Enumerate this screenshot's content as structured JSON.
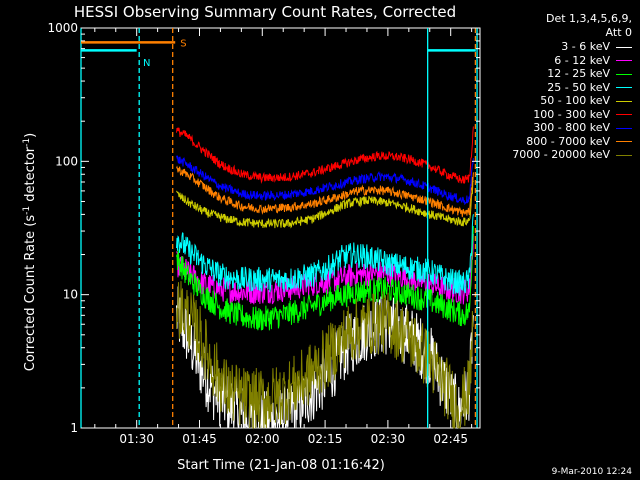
{
  "chart_data": {
    "type": "line",
    "title": "HESSI Observing Summary Count Rates, Corrected",
    "xlabel": "Start Time (21-Jan-08 01:16:42)",
    "ylabel_parts": [
      "Corrected Count Rate (s",
      "-1",
      " detector",
      "-1",
      ")"
    ],
    "yscale": "log",
    "ylim": [
      1,
      1000
    ],
    "xlim_min": [
      76.7,
      172
    ],
    "x_ticks": [
      {
        "m": 90,
        "label": "01:30"
      },
      {
        "m": 105,
        "label": "01:45"
      },
      {
        "m": 120,
        "label": "02:00"
      },
      {
        "m": 135,
        "label": "02:15"
      },
      {
        "m": 150,
        "label": "02:30"
      },
      {
        "m": 165,
        "label": "02:45"
      }
    ],
    "y_ticks": [
      {
        "v": 1,
        "label": "1"
      },
      {
        "v": 10,
        "label": "10"
      },
      {
        "v": 100,
        "label": "100"
      },
      {
        "v": 1000,
        "label": "1000"
      }
    ],
    "legend_title": [
      "Det 1,3,4,5,6,9,",
      "Att 0"
    ],
    "series": [
      {
        "name": "3 - 6 keV",
        "color": "#ffffff",
        "points": [
          [
            99.5,
            7
          ],
          [
            102,
            5
          ],
          [
            105,
            3
          ],
          [
            108,
            2
          ],
          [
            112,
            1.5
          ],
          [
            116,
            1.2
          ],
          [
            120,
            1.1
          ],
          [
            125,
            1.2
          ],
          [
            130,
            1.6
          ],
          [
            136,
            2.6
          ],
          [
            140,
            4
          ],
          [
            145,
            5.5
          ],
          [
            150,
            6
          ],
          [
            155,
            5
          ],
          [
            160,
            3.5
          ],
          [
            164,
            2
          ],
          [
            167,
            1.3
          ],
          [
            169.5,
            2
          ],
          [
            170.5,
            8
          ]
        ]
      },
      {
        "name": "6 - 12 keV",
        "color": "#ff00ff",
        "points": [
          [
            99.5,
            17
          ],
          [
            102,
            15
          ],
          [
            106,
            12
          ],
          [
            110,
            11
          ],
          [
            115,
            10.5
          ],
          [
            120,
            10.5
          ],
          [
            126,
            11
          ],
          [
            132,
            12
          ],
          [
            138,
            13
          ],
          [
            142,
            14
          ],
          [
            148,
            14.5
          ],
          [
            152,
            14
          ],
          [
            156,
            13
          ],
          [
            160,
            12
          ],
          [
            164,
            11
          ],
          [
            168,
            10.5
          ],
          [
            169.5,
            11
          ],
          [
            170.5,
            30
          ]
        ]
      },
      {
        "name": "12 - 25 keV",
        "color": "#00ff00",
        "points": [
          [
            99.5,
            19
          ],
          [
            102,
            14
          ],
          [
            106,
            10
          ],
          [
            110,
            8
          ],
          [
            114,
            7
          ],
          [
            119,
            6.5
          ],
          [
            125,
            7
          ],
          [
            131,
            8
          ],
          [
            137,
            9.5
          ],
          [
            143,
            10.5
          ],
          [
            149,
            11
          ],
          [
            155,
            10
          ],
          [
            160,
            9
          ],
          [
            164,
            8
          ],
          [
            168,
            7
          ],
          [
            169.5,
            7.5
          ],
          [
            170.5,
            40
          ]
        ]
      },
      {
        "name": "25 - 50 keV",
        "color": "#00ffff",
        "points": [
          [
            99.5,
            27
          ],
          [
            102,
            22
          ],
          [
            106,
            17
          ],
          [
            110,
            14
          ],
          [
            115,
            13
          ],
          [
            120,
            13
          ],
          [
            126,
            13
          ],
          [
            132,
            14
          ],
          [
            136,
            16
          ],
          [
            139,
            19
          ],
          [
            142,
            20
          ],
          [
            146,
            19
          ],
          [
            150,
            17
          ],
          [
            155,
            16
          ],
          [
            160,
            15
          ],
          [
            164,
            13
          ],
          [
            168,
            12
          ],
          [
            169.5,
            13
          ],
          [
            170.5,
            50
          ]
        ]
      },
      {
        "name": "50 - 100 keV",
        "color": "#cccc00",
        "points": [
          [
            99.5,
            57
          ],
          [
            102,
            50
          ],
          [
            106,
            42
          ],
          [
            110,
            38
          ],
          [
            115,
            35
          ],
          [
            120,
            34
          ],
          [
            126,
            34
          ],
          [
            132,
            37
          ],
          [
            136,
            42
          ],
          [
            140,
            48
          ],
          [
            145,
            51
          ],
          [
            150,
            49
          ],
          [
            155,
            45
          ],
          [
            160,
            40
          ],
          [
            164,
            37
          ],
          [
            168,
            35
          ],
          [
            169.5,
            36
          ],
          [
            170.5,
            80
          ]
        ]
      },
      {
        "name": "100 - 300 keV",
        "color": "#ff0000",
        "points": [
          [
            99.5,
            170
          ],
          [
            102,
            155
          ],
          [
            106,
            120
          ],
          [
            110,
            95
          ],
          [
            115,
            80
          ],
          [
            120,
            75
          ],
          [
            126,
            76
          ],
          [
            132,
            82
          ],
          [
            138,
            93
          ],
          [
            143,
            103
          ],
          [
            148,
            110
          ],
          [
            152,
            108
          ],
          [
            156,
            102
          ],
          [
            160,
            92
          ],
          [
            164,
            80
          ],
          [
            168,
            72
          ],
          [
            169.5,
            75
          ],
          [
            170.5,
            200
          ]
        ]
      },
      {
        "name": "300 - 800 keV",
        "color": "#0000ff",
        "points": [
          [
            99.5,
            105
          ],
          [
            102,
            95
          ],
          [
            106,
            78
          ],
          [
            110,
            65
          ],
          [
            115,
            57
          ],
          [
            120,
            55
          ],
          [
            126,
            56
          ],
          [
            132,
            60
          ],
          [
            138,
            67
          ],
          [
            143,
            73
          ],
          [
            148,
            77
          ],
          [
            152,
            75
          ],
          [
            156,
            70
          ],
          [
            160,
            63
          ],
          [
            164,
            56
          ],
          [
            168,
            51
          ],
          [
            169.5,
            52
          ],
          [
            170.5,
            120
          ]
        ]
      },
      {
        "name": "800 - 7000 keV",
        "color": "#ff8000",
        "points": [
          [
            99.5,
            88
          ],
          [
            102,
            80
          ],
          [
            106,
            65
          ],
          [
            110,
            53
          ],
          [
            115,
            46
          ],
          [
            120,
            44
          ],
          [
            126,
            45
          ],
          [
            132,
            48
          ],
          [
            138,
            54
          ],
          [
            143,
            60
          ],
          [
            148,
            61
          ],
          [
            152,
            58
          ],
          [
            156,
            54
          ],
          [
            160,
            50
          ],
          [
            164,
            45
          ],
          [
            168,
            41
          ],
          [
            169.5,
            42
          ],
          [
            170.5,
            90
          ]
        ]
      },
      {
        "name": "7000 - 20000 keV",
        "color": "#808000",
        "points": [
          [
            99.5,
            8.5
          ],
          [
            102,
            7
          ],
          [
            105,
            5
          ],
          [
            108,
            3
          ],
          [
            111,
            2
          ],
          [
            115,
            1.7
          ],
          [
            120,
            1.6
          ],
          [
            125,
            1.8
          ],
          [
            130,
            2.3
          ],
          [
            136,
            3.5
          ],
          [
            140,
            5
          ],
          [
            145,
            6
          ],
          [
            150,
            6.2
          ],
          [
            155,
            4.8
          ],
          [
            160,
            3.2
          ],
          [
            164,
            2
          ],
          [
            167,
            1.4
          ],
          [
            169.5,
            2
          ],
          [
            170.5,
            8
          ]
        ]
      }
    ],
    "flag_bars": [
      {
        "label": "",
        "color": "#00ffff",
        "y_value": 680,
        "ranges": [
          [
            76.7,
            90
          ],
          [
            159.5,
            171
          ]
        ]
      },
      {
        "label": "S",
        "color": "#ff8000",
        "y_value": 780,
        "ranges": [
          [
            76.7,
            99.2
          ]
        ]
      }
    ],
    "flag_text": [
      {
        "label": "N",
        "color": "#00ffff",
        "x": 91.5,
        "y_value": 660
      }
    ],
    "vlines": [
      {
        "x": 76.7,
        "color": "#00ffff",
        "dash": false
      },
      {
        "x": 90.6,
        "color": "#00ffff",
        "dash": true
      },
      {
        "x": 98.6,
        "color": "#ff8000",
        "dash": true
      },
      {
        "x": 159.5,
        "color": "#00ffff",
        "dash": false
      },
      {
        "x": 170.9,
        "color": "#ff8000",
        "dash": true
      },
      {
        "x": 171.3,
        "color": "#00ffff",
        "dash": false
      }
    ],
    "footer_date": "9-Mar-2010 12:24"
  }
}
